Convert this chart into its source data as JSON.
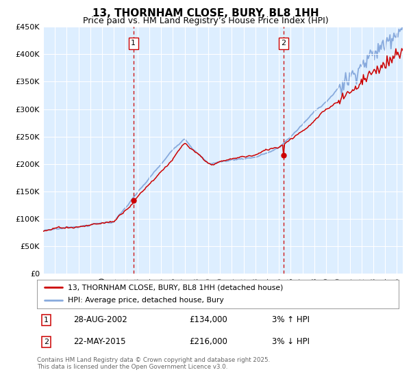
{
  "title": "13, THORNHAM CLOSE, BURY, BL8 1HH",
  "subtitle": "Price paid vs. HM Land Registry’s House Price Index (HPI)",
  "ylim": [
    0,
    450000
  ],
  "yticks": [
    0,
    50000,
    100000,
    150000,
    200000,
    250000,
    300000,
    350000,
    400000,
    450000
  ],
  "ytick_labels": [
    "£0",
    "£50K",
    "£100K",
    "£150K",
    "£200K",
    "£250K",
    "£300K",
    "£350K",
    "£400K",
    "£450K"
  ],
  "xlim_start": 1995,
  "xlim_end": 2025.5,
  "background_color": "#ddeeff",
  "grid_color": "#ffffff",
  "red_line_color": "#cc0000",
  "blue_line_color": "#88aadd",
  "marker1_year": 2002.65,
  "marker2_year": 2015.38,
  "marker1_price": 134000,
  "marker2_price": 216000,
  "marker1_label": "1",
  "marker2_label": "2",
  "marker1_date": "28-AUG-2002",
  "marker2_date": "22-MAY-2015",
  "marker1_pct": "3% ↑ HPI",
  "marker2_pct": "3% ↓ HPI",
  "legend_label_red": "13, THORNHAM CLOSE, BURY, BL8 1HH (detached house)",
  "legend_label_blue": "HPI: Average price, detached house, Bury",
  "footer": "Contains HM Land Registry data © Crown copyright and database right 2025.\nThis data is licensed under the Open Government Licence v3.0.",
  "title_fontsize": 11,
  "subtitle_fontsize": 9,
  "tick_fontsize": 8
}
